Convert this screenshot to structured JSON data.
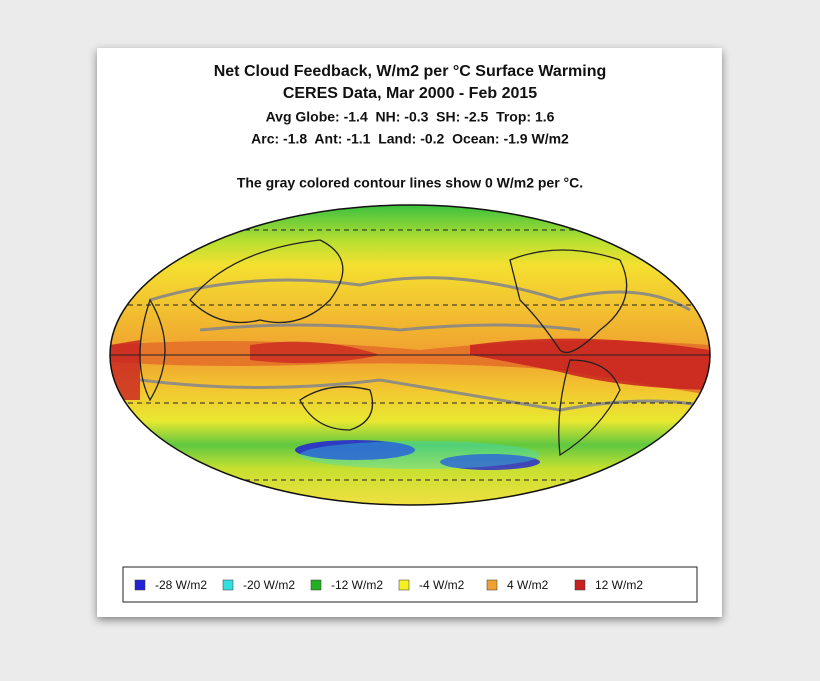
{
  "header": {
    "title": "Net Cloud Feedback, W/m2 per °C Surface Warming",
    "subtitle": "CERES Data, Mar 2000 - Feb 2015",
    "stats": [
      "Avg Globe: -1.4  NH: -0.3  SH: -2.5  Trop: 1.6",
      "Arc: -1.8  Ant: -1.1  Land: -0.2  Ocean: -1.9 W/m2"
    ],
    "note": "The gray colored contour lines show 0 W/m2 per °C."
  },
  "legend": [
    {
      "color": "#2222d8",
      "label": "-28 W/m2"
    },
    {
      "color": "#33e0e0",
      "label": "-20 W/m2"
    },
    {
      "color": "#22b022",
      "label": "-12 W/m2"
    },
    {
      "color": "#f4f022",
      "label": "-4 W/m2"
    },
    {
      "color": "#f0a030",
      "label": "4 W/m2"
    },
    {
      "color": "#c82020",
      "label": "12 W/m2"
    }
  ]
}
